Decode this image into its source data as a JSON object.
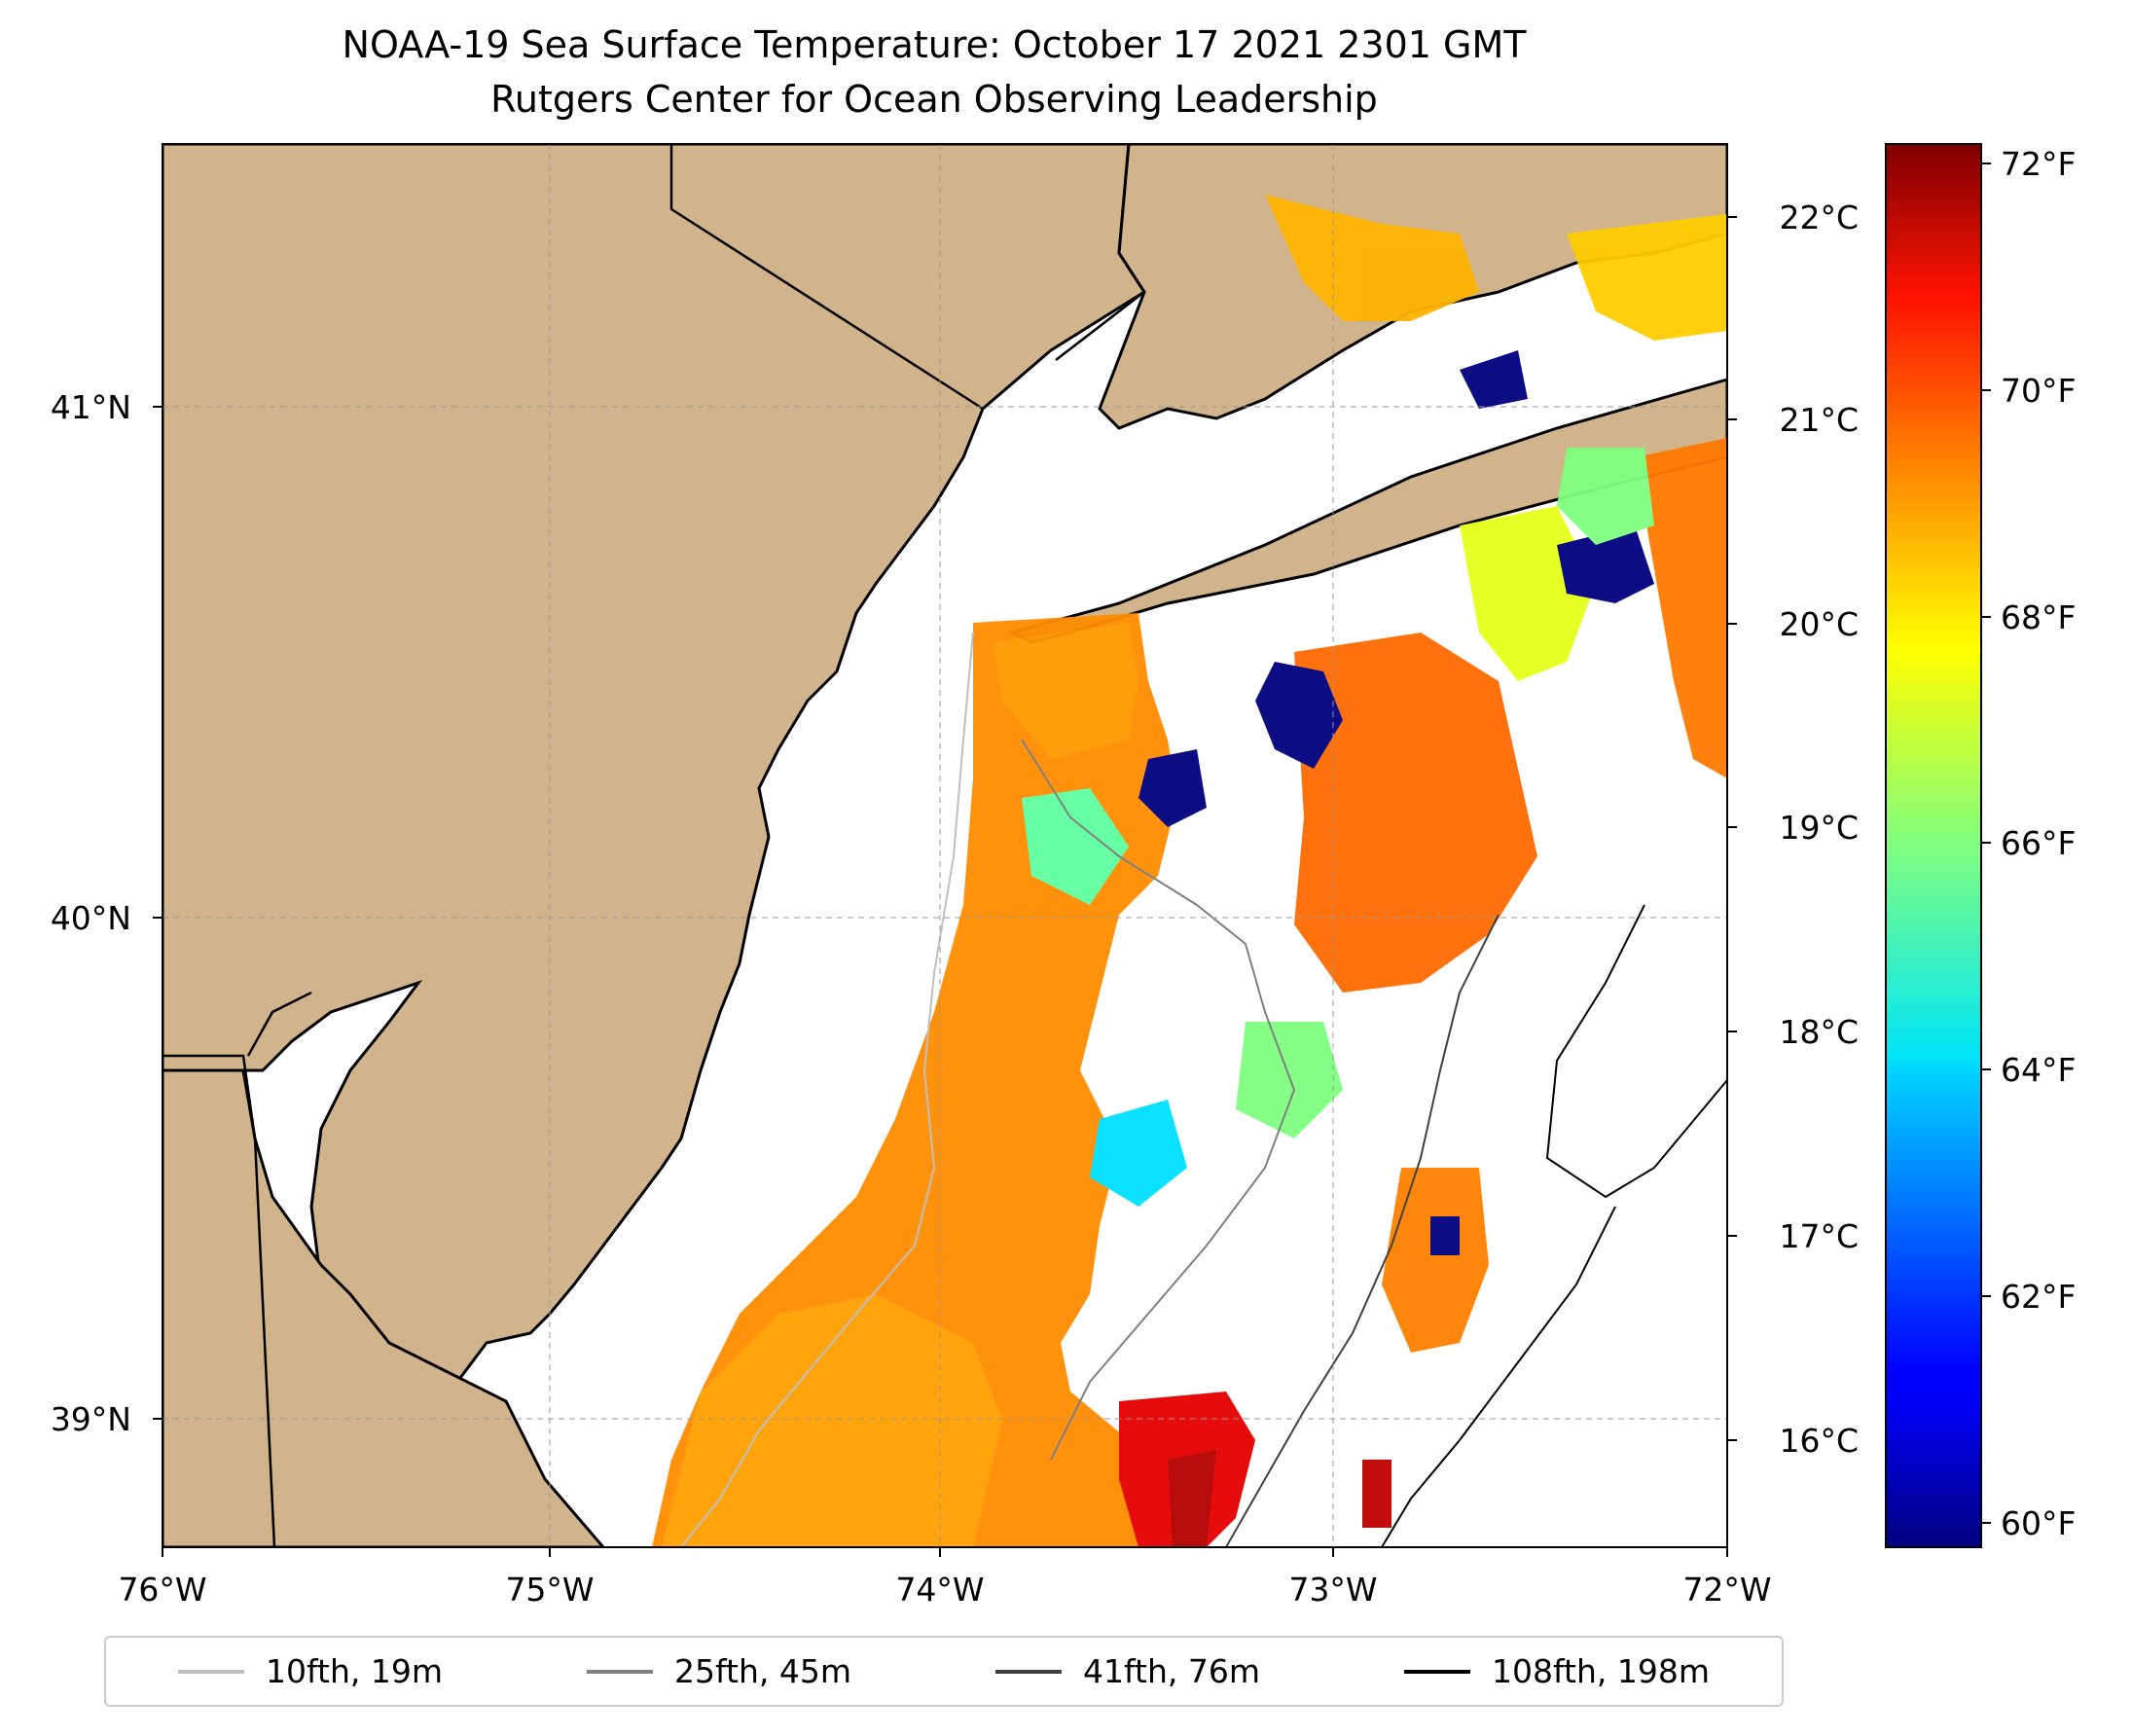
{
  "title": "NOAA-19 Sea Surface Temperature: October 17 2021 2301 GMT",
  "subtitle": "Rutgers Center for Ocean Observing Leadership",
  "map": {
    "extent": {
      "lon": [
        -76,
        -72
      ],
      "lat": [
        38.75,
        41.5
      ]
    },
    "x_ticks": [
      "76°W",
      "75°W",
      "74°W",
      "73°W",
      "72°W"
    ],
    "y_ticks": [
      "39°N",
      "40°N",
      "41°N"
    ],
    "land_color": "#D2B48C",
    "grid": "dashed"
  },
  "colorbar": {
    "colormap": "jet",
    "celsius_ticks": [
      "16°C",
      "17°C",
      "18°C",
      "19°C",
      "20°C",
      "21°C",
      "22°C"
    ],
    "fahrenheit_ticks": [
      "60°F",
      "62°F",
      "64°F",
      "66°F",
      "68°F",
      "70°F",
      "72°F"
    ],
    "range_f": [
      59.8,
      72.3
    ]
  },
  "legend": [
    {
      "label": "10fth, 19m",
      "color": "#bfbfbf"
    },
    {
      "label": "25fth, 45m",
      "color": "#808080"
    },
    {
      "label": "41fth, 76m",
      "color": "#404040"
    },
    {
      "label": "108fth, 198m",
      "color": "#000000"
    }
  ]
}
